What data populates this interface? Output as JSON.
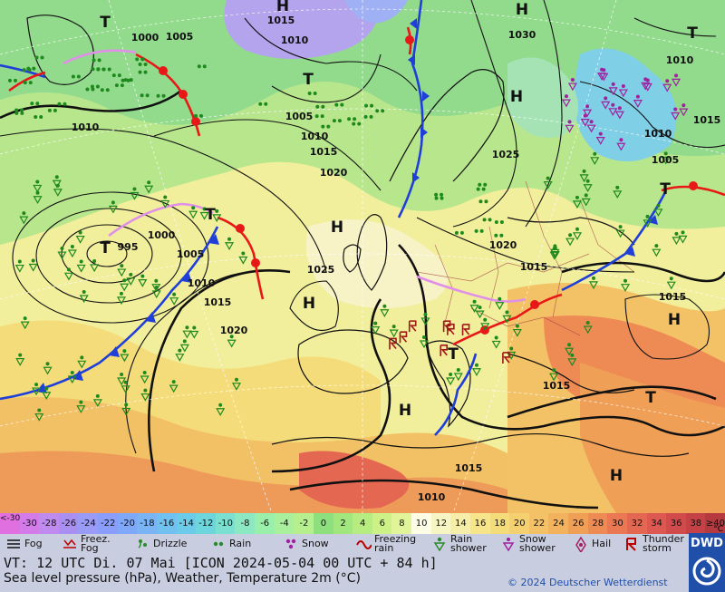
{
  "scale": {
    "unit": "°C",
    "values": [
      "<-30",
      "-30",
      "-28",
      "-26",
      "-24",
      "-22",
      "-20",
      "-18",
      "-16",
      "-14",
      "-12",
      "-10",
      "-8",
      "-6",
      "-4",
      "-2",
      "0",
      "2",
      "4",
      "6",
      "8",
      "10",
      "12",
      "14",
      "16",
      "18",
      "20",
      "22",
      "24",
      "26",
      "28",
      "30",
      "32",
      "34",
      "36",
      "38",
      "≥40"
    ],
    "colors": [
      "#e070e0",
      "#d27be9",
      "#bf8bef",
      "#a98ff2",
      "#9a9af7",
      "#8a9dfa",
      "#7fa8f8",
      "#7ab4f5",
      "#70c0f0",
      "#6ccbe8",
      "#6cd6dc",
      "#7be0cf",
      "#8ce8c0",
      "#9aefaa",
      "#a8f09c",
      "#b6f08e",
      "#8ee07e",
      "#a2e67e",
      "#b6ec82",
      "#cdf186",
      "#e1f49a",
      "#fdfde6",
      "#f7f5c4",
      "#f6eea8",
      "#f6e58a",
      "#f5dc7b",
      "#f5d070",
      "#f4c266",
      "#f2b25e",
      "#f09f57",
      "#ee8b55",
      "#ea7853",
      "#e46752",
      "#dc5850",
      "#d24b4c",
      "#c44246",
      "#b43a40"
    ]
  },
  "legend": [
    {
      "label": "Fog",
      "icon": "fog-icon"
    },
    {
      "label": "Freez.\nFog",
      "icon": "freezing-fog-icon"
    },
    {
      "label": "Drizzle",
      "icon": "drizzle-icon"
    },
    {
      "label": "Rain",
      "icon": "rain-icon"
    },
    {
      "label": "Snow",
      "icon": "snow-icon"
    },
    {
      "label": "Freezing\nrain",
      "icon": "freezing-rain-icon"
    },
    {
      "label": "Rain\nshower",
      "icon": "rain-shower-icon"
    },
    {
      "label": "Snow\nshower",
      "icon": "snow-shower-icon"
    },
    {
      "label": "Hail",
      "icon": "hail-icon"
    },
    {
      "label": "Thunder\nstorm",
      "icon": "thunderstorm-icon"
    }
  ],
  "footer": {
    "valid_time": "VT: 12 UTC Di.  07 Mai [ICON 2024-05-04  00 UTC + 84 h]",
    "subtitle": "Sea level pressure (hPa), Weather, Temperature 2m (°C)",
    "copyright": "© 2024 Deutscher Wetterdienst",
    "logo": "DWD"
  },
  "map": {
    "pressure_centers": [
      {
        "label": "T",
        "lx": 116,
        "ly": 30
      },
      {
        "label": "H",
        "lx": 312,
        "ly": 12
      },
      {
        "label": "H",
        "lx": 576,
        "ly": 16
      },
      {
        "label": "T",
        "lx": 764,
        "ly": 42
      },
      {
        "label": "T",
        "lx": 340,
        "ly": 93
      },
      {
        "label": "H",
        "lx": 570,
        "ly": 112
      },
      {
        "label": "T",
        "lx": 116,
        "ly": 279
      },
      {
        "label": "T",
        "lx": 232,
        "ly": 242
      },
      {
        "label": "H",
        "lx": 372,
        "ly": 256
      },
      {
        "label": "H",
        "lx": 341,
        "ly": 340
      },
      {
        "label": "T",
        "lx": 734,
        "ly": 214
      },
      {
        "label": "H",
        "lx": 744,
        "ly": 358
      },
      {
        "label": "T",
        "lx": 718,
        "ly": 444
      },
      {
        "label": "H",
        "lx": 447,
        "ly": 458
      },
      {
        "label": "T",
        "lx": 500,
        "ly": 396
      },
      {
        "label": "H",
        "lx": 680,
        "ly": 530
      }
    ],
    "isobar_labels": [
      {
        "text": "1015",
        "lx": 310,
        "ly": 26
      },
      {
        "text": "1010",
        "lx": 325,
        "ly": 48
      },
      {
        "text": "1000",
        "lx": 160,
        "ly": 45
      },
      {
        "text": "1005",
        "lx": 198,
        "ly": 44
      },
      {
        "text": "1030",
        "lx": 576,
        "ly": 42
      },
      {
        "text": "1010",
        "lx": 750,
        "ly": 70
      },
      {
        "text": "1010",
        "lx": 94,
        "ly": 144
      },
      {
        "text": "1005",
        "lx": 330,
        "ly": 132
      },
      {
        "text": "1010",
        "lx": 347,
        "ly": 154
      },
      {
        "text": "1015",
        "lx": 357,
        "ly": 171
      },
      {
        "text": "1020",
        "lx": 368,
        "ly": 194
      },
      {
        "text": "1025",
        "lx": 558,
        "ly": 174
      },
      {
        "text": "1010",
        "lx": 726,
        "ly": 151
      },
      {
        "text": "1005",
        "lx": 734,
        "ly": 180
      },
      {
        "text": "1015",
        "lx": 780,
        "ly": 136
      },
      {
        "text": "995",
        "lx": 141,
        "ly": 276
      },
      {
        "text": "1000",
        "lx": 178,
        "ly": 263
      },
      {
        "text": "1005",
        "lx": 210,
        "ly": 284
      },
      {
        "text": "1010",
        "lx": 222,
        "ly": 316
      },
      {
        "text": "1015",
        "lx": 240,
        "ly": 337
      },
      {
        "text": "1020",
        "lx": 258,
        "ly": 368
      },
      {
        "text": "1025",
        "lx": 354,
        "ly": 301
      },
      {
        "text": "1020",
        "lx": 555,
        "ly": 274
      },
      {
        "text": "1015",
        "lx": 589,
        "ly": 298
      },
      {
        "text": "1015",
        "lx": 742,
        "ly": 331
      },
      {
        "text": "1015",
        "lx": 614,
        "ly": 429
      },
      {
        "text": "1015",
        "lx": 517,
        "ly": 520
      },
      {
        "text": "1010",
        "lx": 476,
        "ly": 552
      }
    ]
  }
}
